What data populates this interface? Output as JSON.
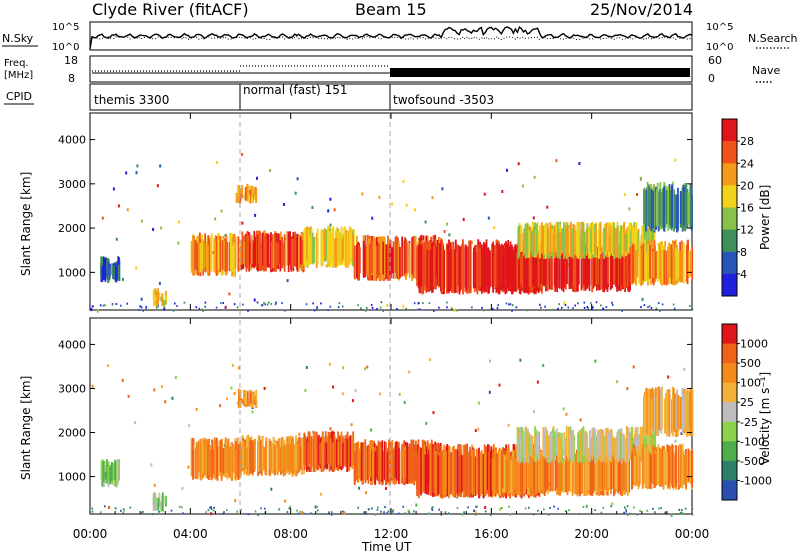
{
  "header": {
    "station": "Clyde River (fitACF)",
    "beam": "Beam 15",
    "date": "25/Nov/2014"
  },
  "status_panels": {
    "nsky_label": "N.Sky",
    "nsky_ticks": [
      "10^5",
      "10^0"
    ],
    "nsearch_label": "N.Search",
    "nsearch_ticks": [
      "10^5",
      "10^0"
    ],
    "freq_label_line1": "Freq.",
    "freq_label_line2": "[MHz]",
    "freq_ticks": [
      "18",
      "8"
    ],
    "nave_label": "Nave",
    "nave_ticks": [
      "60",
      "0"
    ],
    "cpid_label": "CPID"
  },
  "chart_data": [
    {
      "type": "heatmap",
      "panel": "power",
      "ylabel": "Slant Range [km]",
      "xlabel": "",
      "yticks": [
        "1000",
        "2000",
        "3000",
        "4000"
      ],
      "ylim": [
        150,
        4600
      ],
      "colorbar_label": "Power [dB]",
      "colorbar_ticks": [
        "4",
        "8",
        "12",
        "16",
        "20",
        "24",
        "28"
      ],
      "colorbar_colors": [
        "#1f1fe0",
        "#2a55b8",
        "#3f8f5a",
        "#88c24a",
        "#f2d21a",
        "#f59a1a",
        "#f0531a",
        "#e0151a"
      ],
      "blobs": [
        {
          "t0": 0.4,
          "t1": 1.2,
          "r0": 850,
          "r1": 1250,
          "c": 1
        },
        {
          "t0": 2.5,
          "t1": 3.0,
          "r0": 300,
          "r1": 500,
          "c": 4
        },
        {
          "t0": 4.0,
          "t1": 6.0,
          "r0": 1000,
          "r1": 1750,
          "c": 5
        },
        {
          "t0": 5.8,
          "t1": 6.6,
          "r0": 2650,
          "r1": 2850,
          "c": 5
        },
        {
          "t0": 6.0,
          "t1": 8.5,
          "r0": 1100,
          "r1": 1800,
          "c": 6
        },
        {
          "t0": 8.5,
          "t1": 10.5,
          "r0": 1200,
          "r1": 1900,
          "c": 4
        },
        {
          "t0": 10.5,
          "t1": 14.0,
          "r0": 900,
          "r1": 1700,
          "c": 6
        },
        {
          "t0": 13.0,
          "t1": 18.0,
          "r0": 600,
          "r1": 1600,
          "c": 7
        },
        {
          "t0": 16.0,
          "t1": 21.5,
          "r0": 650,
          "r1": 1500,
          "c": 7
        },
        {
          "t0": 17.0,
          "t1": 22.5,
          "r0": 1400,
          "r1": 2000,
          "c": 4
        },
        {
          "t0": 21.5,
          "t1": 24.0,
          "r0": 800,
          "r1": 1600,
          "c": 5
        },
        {
          "t0": 22.0,
          "t1": 24.0,
          "r0": 2000,
          "r1": 2900,
          "c": 2
        }
      ]
    },
    {
      "type": "heatmap",
      "panel": "velocity",
      "ylabel": "Slant Range [km]",
      "xlabel": "Time UT",
      "yticks": [
        "1000",
        "2000",
        "3000",
        "4000"
      ],
      "ylim": [
        150,
        4600
      ],
      "colorbar_label": "Velocity [m s⁻¹]",
      "colorbar_ticks": [
        "1000",
        "500",
        "100",
        "25",
        "-25",
        "-100",
        "-500",
        "-1000"
      ],
      "colorbar_colors": [
        "#2a4fb0",
        "#2e7f6a",
        "#4caf4c",
        "#8cd24a",
        "#bdbdbd",
        "#f2b23a",
        "#f58a1a",
        "#f0611a",
        "#e0151a"
      ],
      "blobs": [
        {
          "t0": 0.4,
          "t1": 1.2,
          "r0": 850,
          "r1": 1250,
          "c": 3
        },
        {
          "t0": 2.5,
          "t1": 3.0,
          "r0": 300,
          "r1": 500,
          "c": 3
        },
        {
          "t0": 4.0,
          "t1": 6.0,
          "r0": 1000,
          "r1": 1750,
          "c": 6
        },
        {
          "t0": 5.8,
          "t1": 6.6,
          "r0": 2650,
          "r1": 2850,
          "c": 6
        },
        {
          "t0": 6.0,
          "t1": 8.5,
          "r0": 1100,
          "r1": 1800,
          "c": 6
        },
        {
          "t0": 8.5,
          "t1": 10.5,
          "r0": 1200,
          "r1": 1900,
          "c": 7
        },
        {
          "t0": 10.5,
          "t1": 14.0,
          "r0": 900,
          "r1": 1700,
          "c": 7
        },
        {
          "t0": 13.0,
          "t1": 18.0,
          "r0": 600,
          "r1": 1600,
          "c": 7
        },
        {
          "t0": 16.0,
          "t1": 21.5,
          "r0": 650,
          "r1": 1500,
          "c": 6
        },
        {
          "t0": 17.0,
          "t1": 22.5,
          "r0": 1400,
          "r1": 2000,
          "c": 4
        },
        {
          "t0": 21.5,
          "t1": 24.0,
          "r0": 800,
          "r1": 1600,
          "c": 6
        },
        {
          "t0": 22.0,
          "t1": 24.0,
          "r0": 2000,
          "r1": 2900,
          "c": 5
        }
      ]
    }
  ],
  "time_axis": {
    "xlabel": "Time UT",
    "ticks": [
      "00:00",
      "04:00",
      "08:00",
      "12:00",
      "16:00",
      "20:00",
      "00:00"
    ],
    "range_hours": [
      0,
      24
    ]
  },
  "cpid_segments": [
    {
      "label": "themis 3300",
      "t0": 0.0,
      "t1": 6.0
    },
    {
      "label": "normal (fast) 151",
      "t0": 6.0,
      "t1": 12.0
    },
    {
      "label": "twofsound -3503",
      "t0": 12.0,
      "t1": 24.0
    }
  ]
}
